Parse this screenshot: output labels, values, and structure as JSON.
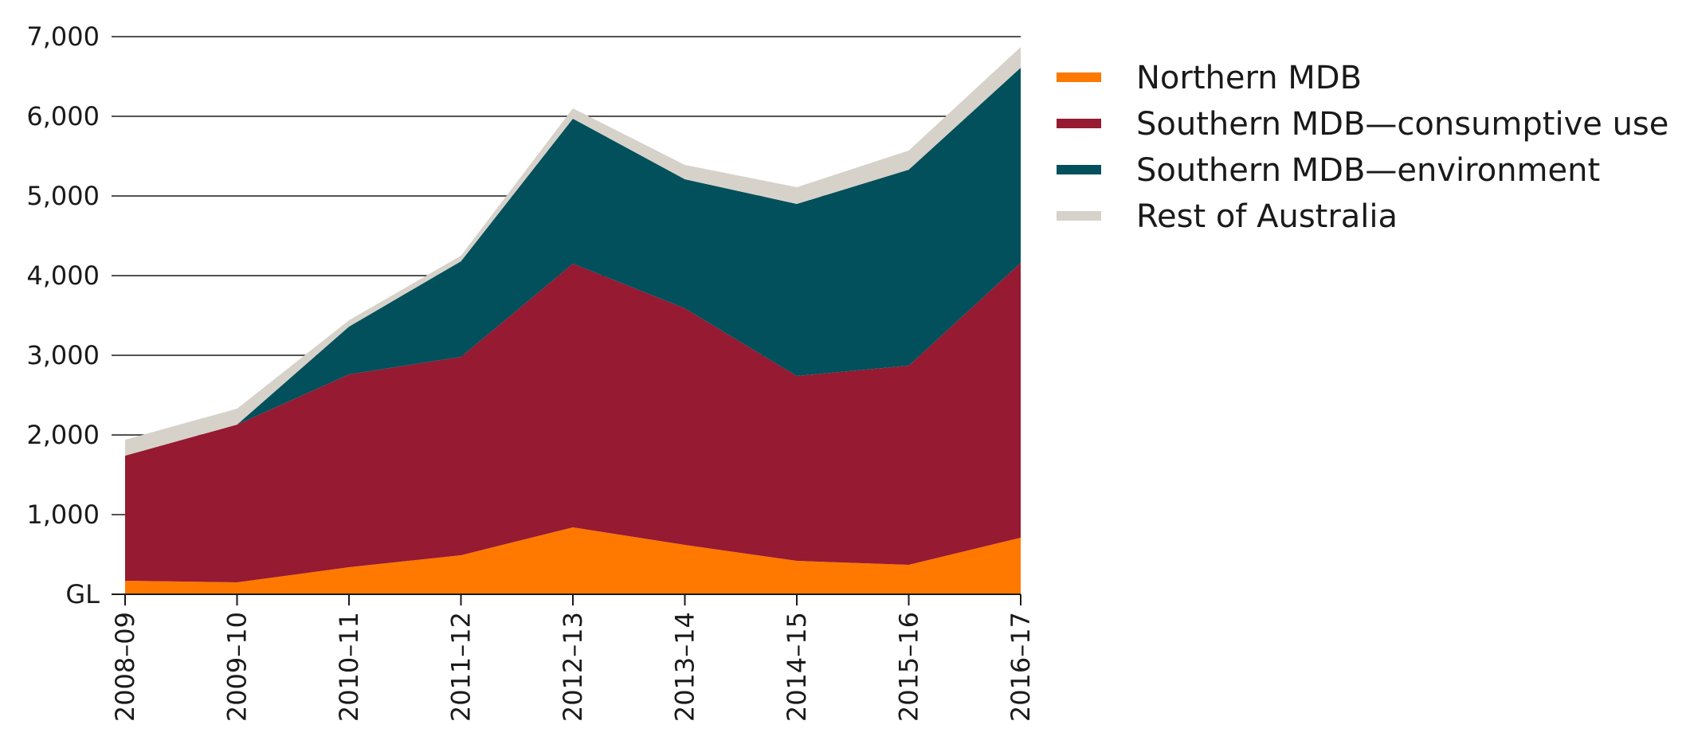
{
  "chart_data": {
    "type": "area",
    "stacked": true,
    "title": "",
    "xlabel": "",
    "ylabel": "GL",
    "ylim": [
      0,
      7000
    ],
    "yticks": [
      {
        "value": 0,
        "label": "GL"
      },
      {
        "value": 1000,
        "label": "1,000"
      },
      {
        "value": 2000,
        "label": "2,000"
      },
      {
        "value": 3000,
        "label": "3,000"
      },
      {
        "value": 4000,
        "label": "4,000"
      },
      {
        "value": 5000,
        "label": "5,000"
      },
      {
        "value": 6000,
        "label": "6,000"
      },
      {
        "value": 7000,
        "label": "7,000"
      }
    ],
    "categories": [
      "2008–09",
      "2009–10",
      "2010–11",
      "2011–12",
      "2012–13",
      "2013–14",
      "2014–15",
      "2015–16",
      "2016–17"
    ],
    "grid": true,
    "legend_position": "right",
    "series": [
      {
        "name": "Northern MDB",
        "color": "#ff7800",
        "values": [
          170,
          150,
          340,
          490,
          840,
          620,
          420,
          370,
          710
        ]
      },
      {
        "name": "Southern MDB—consumptive use",
        "color": "#961a31",
        "values": [
          1570,
          1980,
          2420,
          2490,
          3310,
          2970,
          2320,
          2500,
          3450
        ]
      },
      {
        "name": "Southern MDB—environment",
        "color": "#02505c",
        "values": [
          0,
          0,
          600,
          1200,
          1820,
          1620,
          2160,
          2460,
          2450
        ]
      },
      {
        "name": "Rest of Australia",
        "color": "#d6d2ca",
        "values": [
          200,
          200,
          80,
          70,
          130,
          180,
          210,
          240,
          260
        ]
      }
    ]
  }
}
